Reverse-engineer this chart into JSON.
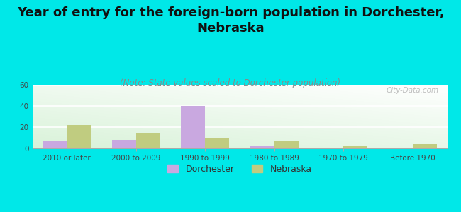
{
  "title": "Year of entry for the foreign-born population in Dorchester,\nNebraska",
  "subtitle": "(Note: State values scaled to Dorchester population)",
  "categories": [
    "2010 or later",
    "2000 to 2009",
    "1990 to 1999",
    "1980 to 1989",
    "1970 to 1979",
    "Before 1970"
  ],
  "dorchester_values": [
    7,
    8,
    40,
    3,
    0,
    0
  ],
  "nebraska_values": [
    22,
    15,
    10,
    7,
    3,
    4
  ],
  "dorchester_color": "#c9a8e0",
  "nebraska_color": "#c0cc80",
  "background_color": "#00e8e8",
  "ylim": [
    0,
    60
  ],
  "yticks": [
    0,
    20,
    40,
    60
  ],
  "bar_width": 0.35,
  "title_fontsize": 13,
  "subtitle_fontsize": 8.5,
  "tick_fontsize": 7.5,
  "legend_fontsize": 9,
  "watermark": "City-Data.com"
}
